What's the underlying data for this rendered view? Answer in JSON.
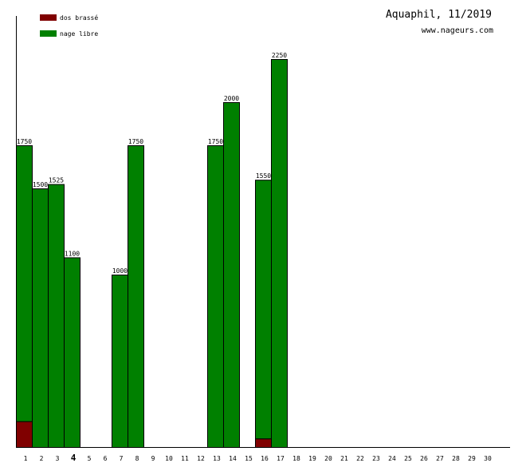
{
  "chart_data": {
    "type": "bar",
    "title": "Aquaphil, 11/2019",
    "subtitle": "www.nageurs.com",
    "xlabel": "",
    "ylabel": "",
    "ylim": [
      0,
      2500
    ],
    "grid": false,
    "legend_placement": "top-left",
    "stacked": true,
    "highlight_category": "4",
    "categories": [
      "1",
      "2",
      "3",
      "4",
      "5",
      "6",
      "7",
      "8",
      "9",
      "10",
      "11",
      "12",
      "13",
      "14",
      "15",
      "16",
      "17",
      "18",
      "19",
      "20",
      "21",
      "22",
      "23",
      "24",
      "25",
      "26",
      "27",
      "28",
      "29",
      "30"
    ],
    "series": [
      {
        "name": "dos brassé",
        "color": "#800000",
        "values": [
          150,
          0,
          0,
          0,
          0,
          0,
          0,
          0,
          0,
          0,
          0,
          0,
          0,
          0,
          0,
          50,
          0,
          0,
          0,
          0,
          0,
          0,
          0,
          0,
          0,
          0,
          0,
          0,
          0,
          0
        ]
      },
      {
        "name": "nage libre",
        "color": "#008000",
        "values": [
          1600,
          1500,
          1525,
          1100,
          0,
          0,
          1000,
          1750,
          0,
          0,
          0,
          0,
          1750,
          2000,
          0,
          1500,
          2250,
          0,
          0,
          0,
          0,
          0,
          0,
          0,
          0,
          0,
          0,
          0,
          0,
          0
        ]
      }
    ],
    "totals": [
      "1750",
      "1500",
      "1525",
      "1100",
      "",
      "",
      "1000",
      "1750",
      "",
      "",
      "",
      "",
      "1750",
      "2000",
      "",
      "1550",
      "2250",
      "",
      "",
      "",
      "",
      "",
      "",
      "",
      "",
      "",
      "",
      "",
      "",
      ""
    ]
  }
}
